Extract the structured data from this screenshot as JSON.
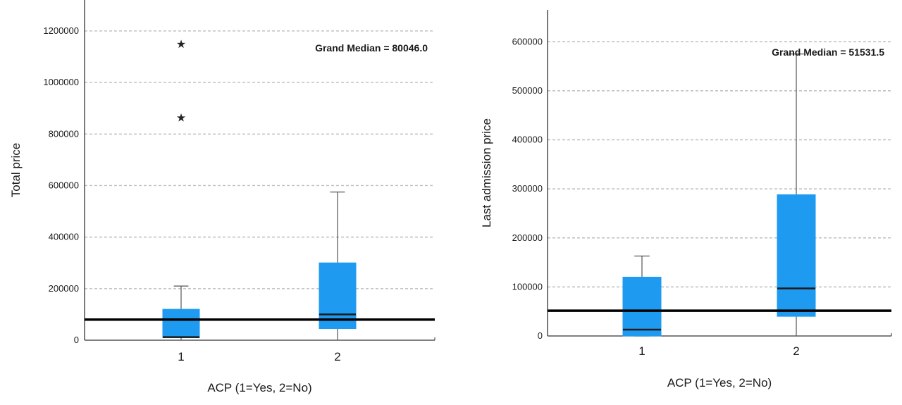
{
  "chart_data": [
    {
      "type": "boxplot",
      "xlabel": "ACP (1=Yes, 2=No)",
      "ylabel": "Total price",
      "categories": [
        "1",
        "2"
      ],
      "ylim": [
        0,
        1320000
      ],
      "yticks": [
        0,
        200000,
        400000,
        600000,
        800000,
        1000000,
        1200000
      ],
      "ytick_labels": [
        "0",
        "200000",
        "400000",
        "600000",
        "800000",
        "1000000",
        "1200000"
      ],
      "grid": "horizontal-dashed",
      "grand_median": 80046.0,
      "grand_median_label": "Grand Median = 80046.0",
      "boxes": [
        {
          "category": "1",
          "min": 0,
          "q1": 10000,
          "median": 12000,
          "q3": 120000,
          "max": 210000,
          "outliers": [
            1150000,
            865000
          ]
        },
        {
          "category": "2",
          "min": 0,
          "q1": 45000,
          "median": 100000,
          "q3": 300000,
          "max": 575000,
          "outliers": []
        }
      ]
    },
    {
      "type": "boxplot",
      "xlabel": "ACP (1=Yes, 2=No)",
      "ylabel": "Last admission price",
      "categories": [
        "1",
        "2"
      ],
      "ylim": [
        0,
        665000
      ],
      "yticks": [
        0,
        100000,
        200000,
        300000,
        400000,
        500000,
        600000
      ],
      "ytick_labels": [
        "0",
        "100000",
        "200000",
        "300000",
        "400000",
        "500000",
        "600000"
      ],
      "grid": "horizontal-dashed",
      "grand_median": 51531.5,
      "grand_median_label": "Grand Median = 51531.5",
      "boxes": [
        {
          "category": "1",
          "min": 0,
          "q1": 0,
          "median": 13000,
          "q3": 120000,
          "max": 163000,
          "outliers": []
        },
        {
          "category": "2",
          "min": 0,
          "q1": 40000,
          "median": 97000,
          "q3": 288000,
          "max": 575000,
          "outliers": []
        }
      ]
    }
  ],
  "colors": {
    "box_fill": "#1e9bf0",
    "box_stroke": "#1e9bf0",
    "median_line": "#1a1a1a",
    "grand_median_line": "#000000",
    "whisker": "#555555",
    "grid": "#bdbdbd",
    "axis": "#333333"
  },
  "icons": {
    "outlier_marker": "star-icon"
  }
}
